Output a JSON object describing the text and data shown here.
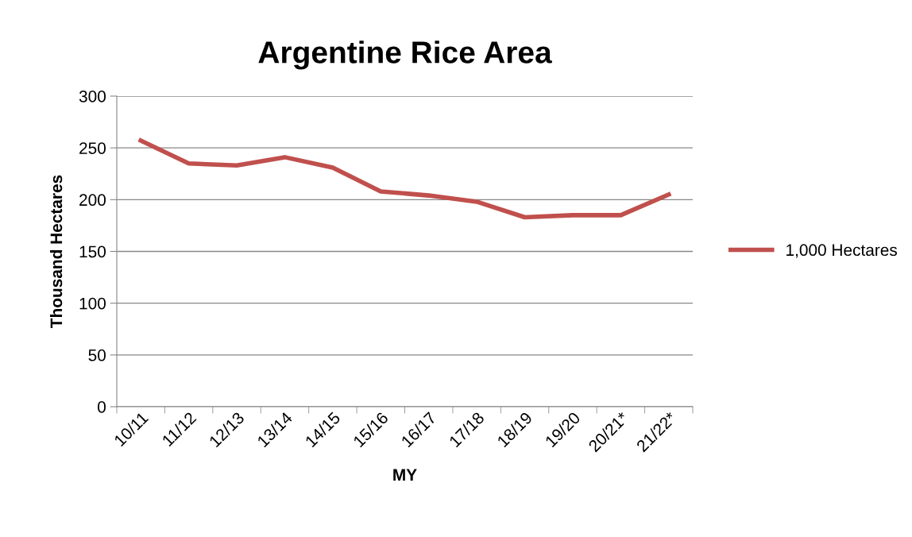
{
  "chart_data": {
    "type": "line",
    "title": "Argentine Rice Area",
    "xlabel": "MY",
    "ylabel": "Thousand Hectares",
    "categories": [
      "10/11",
      "11/12",
      "12/13",
      "13/14",
      "14/15",
      "15/16",
      "16/17",
      "17/18",
      "18/19",
      "19/20",
      "20/21*",
      "21/22*"
    ],
    "series": [
      {
        "name": "1,000 Hectares",
        "color": "#c0504d",
        "values": [
          257,
          235,
          233,
          241,
          231,
          208,
          204,
          198,
          183,
          185,
          185,
          205
        ]
      }
    ],
    "ylim": [
      0,
      300
    ],
    "yticks": [
      0,
      50,
      100,
      150,
      200,
      250,
      300
    ],
    "grid": "y",
    "legend": "right",
    "marker": "none",
    "line_style": "solid"
  }
}
